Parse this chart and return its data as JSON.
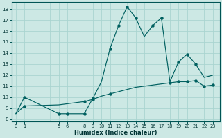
{
  "xlabel": "Humidex (Indice chaleur)",
  "background_color": "#cce8e4",
  "line_color": "#006060",
  "grid_color": "#aad4d0",
  "xtick_labels": [
    "0",
    "1",
    "",
    "",
    "",
    "5",
    "6",
    "",
    "8",
    "9",
    "10",
    "11",
    "12",
    "13",
    "14",
    "15",
    "16",
    "17",
    "18",
    "19",
    "20",
    "21",
    "22",
    "23"
  ],
  "xtick_positions": [
    0,
    1,
    2,
    3,
    4,
    5,
    6,
    7,
    8,
    9,
    10,
    11,
    12,
    13,
    14,
    15,
    16,
    17,
    18,
    19,
    20,
    21,
    22,
    23
  ],
  "yticks": [
    8,
    9,
    10,
    11,
    12,
    13,
    14,
    15,
    16,
    17,
    18
  ],
  "ylim": [
    7.8,
    18.6
  ],
  "xlim": [
    -0.5,
    23.8
  ],
  "curve1_x": [
    0,
    1,
    5,
    6,
    8,
    9,
    10,
    11,
    12,
    13,
    14,
    15,
    16,
    17,
    18,
    19,
    20,
    21,
    22,
    23
  ],
  "curve1_y": [
    8.5,
    10.0,
    8.5,
    8.5,
    8.5,
    9.9,
    11.4,
    14.4,
    16.5,
    18.2,
    17.2,
    15.5,
    16.5,
    17.2,
    11.4,
    13.2,
    13.9,
    13.0,
    11.8,
    12.0
  ],
  "curve1_markers_x": [
    1,
    5,
    6,
    8,
    9,
    11,
    12,
    13,
    14,
    16,
    17,
    19,
    20,
    21
  ],
  "curve1_markers_y": [
    10.0,
    8.5,
    8.5,
    8.5,
    9.9,
    14.4,
    16.5,
    18.2,
    17.2,
    16.5,
    17.2,
    13.2,
    13.9,
    13.0
  ],
  "curve2_x": [
    0,
    1,
    5,
    6,
    8,
    9,
    10,
    11,
    12,
    13,
    14,
    15,
    16,
    17,
    18,
    19,
    20,
    21,
    22,
    23
  ],
  "curve2_y": [
    8.5,
    9.2,
    9.3,
    9.4,
    9.6,
    9.8,
    10.1,
    10.3,
    10.5,
    10.7,
    10.9,
    11.0,
    11.1,
    11.2,
    11.3,
    11.4,
    11.4,
    11.5,
    11.0,
    11.1
  ],
  "curve2_markers_x": [
    1,
    8,
    9,
    11,
    18,
    19,
    20,
    21,
    22,
    23
  ],
  "curve2_markers_y": [
    9.2,
    9.6,
    9.8,
    10.3,
    11.3,
    11.4,
    11.4,
    11.5,
    11.0,
    11.1
  ]
}
